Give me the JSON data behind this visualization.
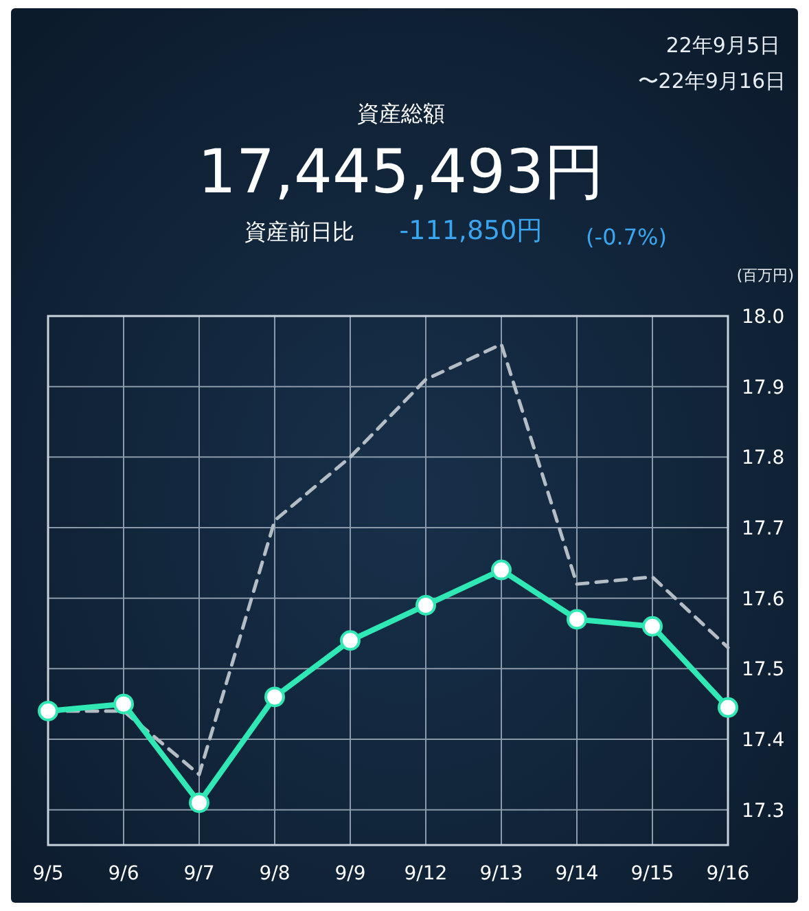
{
  "chart_data": {
    "type": "line",
    "title": "資産総額",
    "ylabel": "(百万円)",
    "annotations": [
      "22年9月5日",
      "〜22年9月16日",
      "17,445,493円",
      "資産前日比",
      "-111,850円",
      "(-0.7%)"
    ],
    "categories": [
      "9/5",
      "9/6",
      "9/7",
      "9/8",
      "9/9",
      "9/12",
      "9/13",
      "9/14",
      "9/15",
      "9/16"
    ],
    "series": [
      {
        "color": "#b4bcc4",
        "line_style": "dashed",
        "marker": "none",
        "values": [
          17.44,
          17.44,
          17.35,
          17.71,
          17.8,
          17.91,
          17.96,
          17.62,
          17.63,
          17.53
        ]
      },
      {
        "color": "#2fe8b4",
        "line_style": "solid",
        "marker": "circle",
        "values": [
          17.44,
          17.45,
          17.31,
          17.46,
          17.54,
          17.59,
          17.64,
          17.57,
          17.56,
          17.445
        ]
      }
    ],
    "ylim": [
      17.25,
      18.0
    ],
    "yticks": [
      17.3,
      17.4,
      17.5,
      17.6,
      17.7,
      17.8,
      17.9,
      {
        "value": 18,
        "label": "18.0"
      }
    ],
    "grid": true
  }
}
